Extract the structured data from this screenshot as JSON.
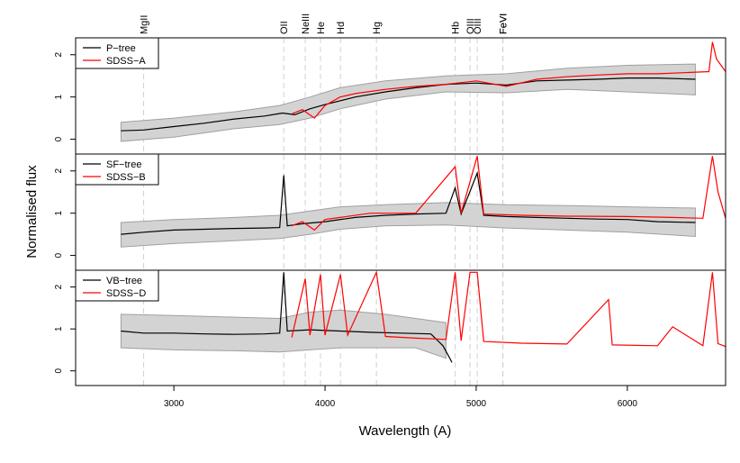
{
  "chart_data": {
    "type": "line",
    "xlabel": "Wavelength (A)",
    "ylabel": "Normalised flux",
    "xlim": [
      2350,
      6650
    ],
    "x_ticks": [
      3000,
      4000,
      5000,
      6000
    ],
    "y_ticks": [
      0,
      1,
      2
    ],
    "colors": {
      "tree": "#000000",
      "sdss": "#ff0000",
      "band": "#d3d3d3",
      "band_edge": "#a0a0a0",
      "guide": "#d0d0d0"
    },
    "emission_lines": [
      {
        "label": "MgII",
        "wavelength": 2800
      },
      {
        "label": "OII",
        "wavelength": 3727
      },
      {
        "label": "NeIII",
        "wavelength": 3869
      },
      {
        "label": "He",
        "wavelength": 3970
      },
      {
        "label": "Hd",
        "wavelength": 4102
      },
      {
        "label": "Hg",
        "wavelength": 4340
      },
      {
        "label": "Hb",
        "wavelength": 4861
      },
      {
        "label": "OIII",
        "wavelength": 4959
      },
      {
        "label": "OIII",
        "wavelength": 5007
      },
      {
        "label": "FeVI",
        "wavelength": 5176
      },
      {
        "label": "FeVI",
        "wavelength": 5177
      }
    ],
    "panels": [
      {
        "ylim": [
          -0.35,
          2.4
        ],
        "legend": "top-left",
        "series": [
          {
            "name": "P−tree",
            "color": "#000000",
            "x": [
              2650,
              2800,
              3000,
              3200,
              3400,
              3600,
              3720,
              3800,
              3900,
              4000,
              4200,
              4400,
              4600,
              4800,
              5000,
              5200,
              5400,
              5600,
              5800,
              6000,
              6200,
              6450
            ],
            "y": [
              0.2,
              0.22,
              0.3,
              0.38,
              0.48,
              0.55,
              0.62,
              0.58,
              0.72,
              0.82,
              1.0,
              1.12,
              1.22,
              1.3,
              1.33,
              1.28,
              1.38,
              1.4,
              1.42,
              1.45,
              1.45,
              1.42
            ]
          },
          {
            "name": "SDSS−A",
            "color": "#ff0000",
            "x": [
              3780,
              3850,
              3930,
              4000,
              4100,
              4200,
              4400,
              4600,
              4800,
              5000,
              5200,
              5400,
              5600,
              5800,
              6000,
              6200,
              6400,
              6540,
              6563,
              6590,
              6650
            ],
            "y": [
              0.6,
              0.7,
              0.5,
              0.8,
              1.0,
              1.08,
              1.18,
              1.25,
              1.3,
              1.38,
              1.25,
              1.42,
              1.48,
              1.52,
              1.55,
              1.55,
              1.58,
              1.6,
              2.3,
              1.9,
              1.6
            ]
          }
        ],
        "band_x": [
          2650,
          3000,
          3400,
          3700,
          3900,
          4100,
          4400,
          4800,
          5200,
          5600,
          6000,
          6450
        ],
        "band_low": [
          -0.05,
          0.05,
          0.25,
          0.35,
          0.5,
          0.72,
          0.95,
          1.12,
          1.1,
          1.18,
          1.12,
          1.05
        ],
        "band_high": [
          0.4,
          0.5,
          0.65,
          0.8,
          1.0,
          1.22,
          1.38,
          1.5,
          1.55,
          1.68,
          1.75,
          1.78
        ]
      },
      {
        "ylim": [
          -0.35,
          2.4
        ],
        "legend": "top-left",
        "series": [
          {
            "name": "SF−tree",
            "color": "#000000",
            "x": [
              2650,
              2800,
              3000,
              3200,
              3400,
              3600,
              3700,
              3727,
              3750,
              3850,
              4000,
              4200,
              4400,
              4600,
              4800,
              4861,
              4900,
              5007,
              5050,
              5200,
              5400,
              5600,
              5800,
              6000,
              6200,
              6450
            ],
            "y": [
              0.5,
              0.55,
              0.6,
              0.62,
              0.64,
              0.65,
              0.66,
              1.9,
              0.7,
              0.75,
              0.8,
              0.9,
              0.95,
              0.98,
              1.0,
              1.6,
              0.98,
              1.95,
              0.95,
              0.92,
              0.9,
              0.88,
              0.86,
              0.85,
              0.8,
              0.78
            ]
          },
          {
            "name": "SDSS−B",
            "color": "#ff0000",
            "x": [
              3780,
              3850,
              3930,
              4000,
              4100,
              4300,
              4600,
              4861,
              4900,
              5007,
              5050,
              5300,
              5600,
              6000,
              6300,
              6500,
              6563,
              6600,
              6650
            ],
            "y": [
              0.7,
              0.8,
              0.6,
              0.85,
              0.9,
              1.0,
              1.0,
              2.1,
              1.0,
              2.35,
              0.98,
              0.95,
              0.93,
              0.92,
              0.9,
              0.88,
              2.35,
              1.5,
              0.88
            ]
          }
        ],
        "band_x": [
          2650,
          3000,
          3400,
          3700,
          3900,
          4100,
          4400,
          4800,
          5200,
          5600,
          6000,
          6450
        ],
        "band_low": [
          0.2,
          0.28,
          0.35,
          0.4,
          0.5,
          0.62,
          0.7,
          0.72,
          0.65,
          0.6,
          0.55,
          0.45
        ],
        "band_high": [
          0.78,
          0.85,
          0.9,
          0.95,
          1.05,
          1.15,
          1.2,
          1.25,
          1.2,
          1.18,
          1.15,
          1.12
        ]
      },
      {
        "ylim": [
          -0.35,
          2.4
        ],
        "legend": "top-left",
        "series": [
          {
            "name": "VB−tree",
            "color": "#000000",
            "x": [
              2650,
              2800,
              3000,
              3200,
              3400,
              3600,
              3700,
              3727,
              3750,
              3900,
              4100,
              4300,
              4500,
              4700,
              4780,
              4810,
              4840
            ],
            "y": [
              0.95,
              0.9,
              0.9,
              0.88,
              0.87,
              0.88,
              0.9,
              2.35,
              0.95,
              0.98,
              0.95,
              0.92,
              0.9,
              0.88,
              0.6,
              0.4,
              0.2
            ]
          },
          {
            "name": "SDSS−D",
            "color": "#ff0000",
            "x": [
              3780,
              3869,
              3900,
              3970,
              4000,
              4102,
              4150,
              4340,
              4400,
              4600,
              4800,
              4861,
              4900,
              4959,
              5007,
              5050,
              5300,
              5600,
              5876,
              5900,
              6200,
              6300,
              6500,
              6563,
              6600,
              6650
            ],
            "y": [
              0.8,
              2.2,
              0.85,
              2.3,
              0.85,
              2.3,
              0.85,
              2.35,
              0.82,
              0.78,
              0.75,
              2.35,
              0.72,
              2.35,
              2.35,
              0.7,
              0.66,
              0.64,
              1.7,
              0.62,
              0.6,
              1.05,
              0.6,
              2.35,
              0.65,
              0.58
            ]
          }
        ],
        "band_x": [
          2650,
          3000,
          3400,
          3700,
          3900,
          4100,
          4400,
          4600,
          4800
        ],
        "band_low": [
          0.55,
          0.5,
          0.48,
          0.45,
          0.5,
          0.55,
          0.55,
          0.55,
          0.3
        ],
        "band_high": [
          1.35,
          1.32,
          1.28,
          1.25,
          1.4,
          1.45,
          1.35,
          1.25,
          1.15
        ]
      }
    ]
  }
}
